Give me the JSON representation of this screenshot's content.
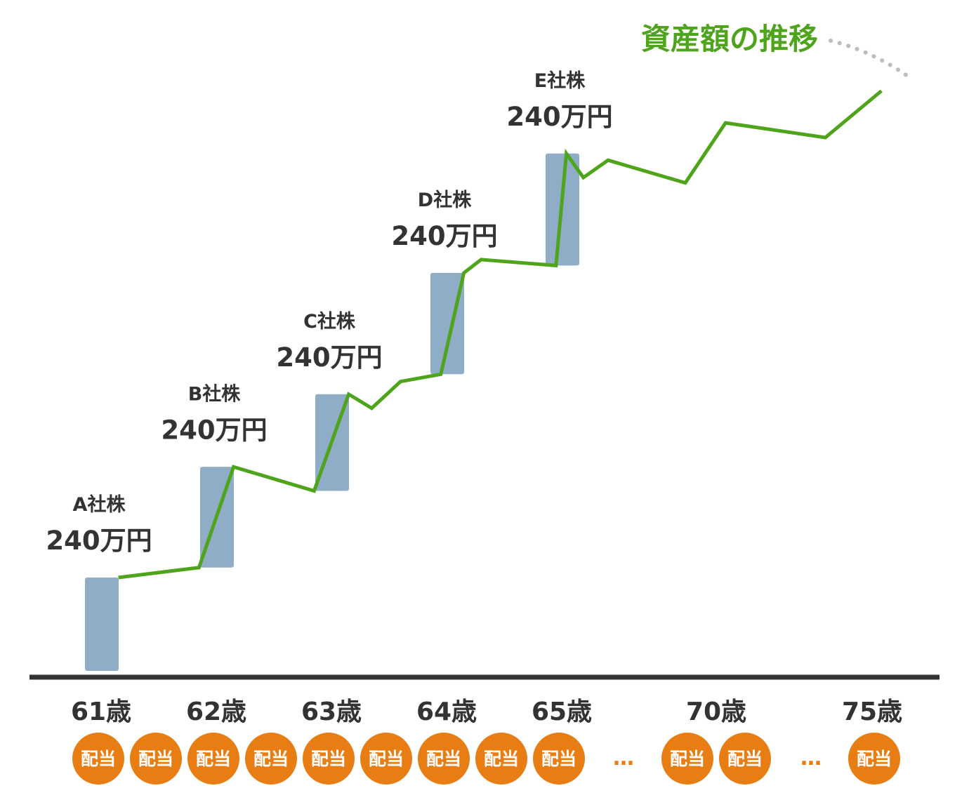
{
  "chart_data": {
    "type": "line",
    "title": "",
    "xlabel": "",
    "ylabel": "",
    "series": [
      {
        "name": "資産額の推移",
        "points": [
          {
            "x": 61.15,
            "y": 140
          },
          {
            "x": 61.85,
            "y": 155
          },
          {
            "x": 62.15,
            "y": 306
          },
          {
            "x": 62.85,
            "y": 270
          },
          {
            "x": 63.15,
            "y": 415
          },
          {
            "x": 63.35,
            "y": 394
          },
          {
            "x": 63.6,
            "y": 434
          },
          {
            "x": 63.95,
            "y": 445
          },
          {
            "x": 64.15,
            "y": 597
          },
          {
            "x": 64.3,
            "y": 617
          },
          {
            "x": 64.95,
            "y": 608
          },
          {
            "x": 65.15,
            "y": 776
          },
          {
            "x": 65.7,
            "y": 740
          },
          {
            "x": 66.5,
            "y": 766
          },
          {
            "x": 69.0,
            "y": 732
          },
          {
            "x": 70.3,
            "y": 822
          },
          {
            "x": 73.5,
            "y": 800
          },
          {
            "x": 75.3,
            "y": 870
          }
        ]
      }
    ],
    "purchases": [
      {
        "name": "A社株",
        "amount": "240万円",
        "age": 61,
        "base": 0,
        "top": 140
      },
      {
        "name": "B社株",
        "amount": "240万円",
        "age": 62,
        "base": 155,
        "top": 306
      },
      {
        "name": "C社株",
        "amount": "240万円",
        "age": 63,
        "base": 270,
        "top": 415
      },
      {
        "name": "D社株",
        "amount": "240万円",
        "age": 64,
        "base": 445,
        "top": 597
      },
      {
        "name": "E社株",
        "amount": "240万円",
        "age": 65,
        "base": 608,
        "top": 776
      }
    ],
    "ages": [
      {
        "label": "61歳",
        "x": 61
      },
      {
        "label": "62歳",
        "x": 62
      },
      {
        "label": "63歳",
        "x": 63
      },
      {
        "label": "64歳",
        "x": 64
      },
      {
        "label": "65歳",
        "x": 65
      },
      {
        "label": "70歳",
        "x": 70
      },
      {
        "label": "75歳",
        "x": 75
      }
    ],
    "dividends": {
      "label": "配当",
      "ellipsis": "…",
      "items": [
        61,
        61.5,
        62,
        62.5,
        63,
        63.5,
        64,
        64.5,
        65,
        "gap",
        70,
        70.5,
        "gap",
        75
      ]
    },
    "colors": {
      "line": "#4ea51c",
      "bar": "#8fadc6",
      "axis": "#333333",
      "text": "#333333",
      "badge": "#e87d14",
      "title": "#4ea51c",
      "leader": "#bdbdbd"
    }
  }
}
